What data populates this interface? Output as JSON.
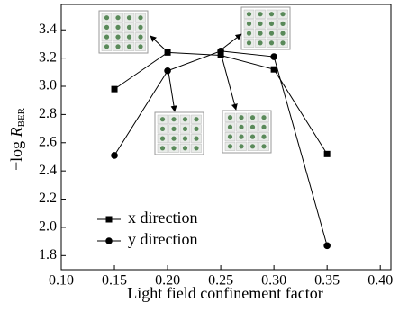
{
  "chart_data": {
    "type": "line",
    "x_label": "Light field confinement factor",
    "y_label": {
      "prefix": "−log ",
      "symbol": "R",
      "subscript": "BER"
    },
    "x": [
      0.15,
      0.2,
      0.25,
      0.3,
      0.35
    ],
    "series": [
      {
        "name": "x direction",
        "marker": "square",
        "color": "#000000",
        "values": [
          2.98,
          3.24,
          3.22,
          3.12,
          2.52
        ]
      },
      {
        "name": "y direction",
        "marker": "circle",
        "color": "#000000",
        "values": [
          2.51,
          3.11,
          3.25,
          3.21,
          1.87
        ]
      }
    ],
    "xlim": [
      0.1,
      0.41
    ],
    "ylim": [
      1.7,
      3.58
    ],
    "xticks": [
      {
        "value": 0.1,
        "label": "0.10"
      },
      0.15,
      {
        "value": 0.2,
        "label": "0.20"
      },
      0.25,
      {
        "value": 0.3,
        "label": "0.30"
      },
      0.35,
      {
        "value": 0.4,
        "label": "0.40"
      }
    ],
    "yticks": [
      1.8,
      {
        "value": 2.0,
        "label": "2.0"
      },
      2.2,
      2.4,
      2.6,
      2.8,
      {
        "value": 3.0,
        "label": "3.0"
      },
      3.2,
      3.4
    ],
    "legend": "lower-left"
  }
}
